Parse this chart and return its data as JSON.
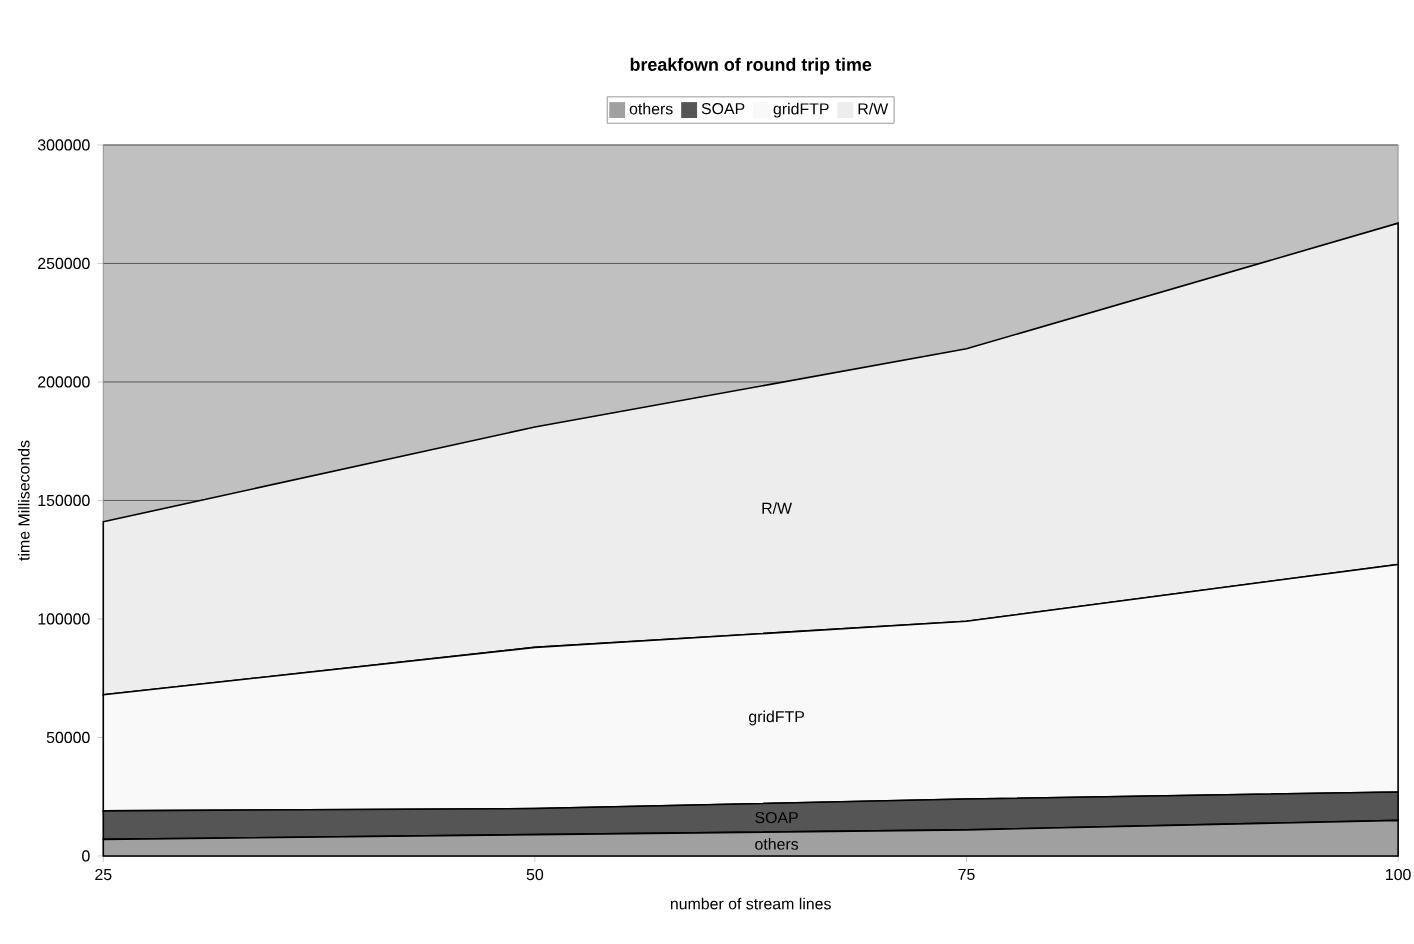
{
  "chart_data": {
    "type": "area",
    "title": "breakfown of round trip time",
    "xlabel": "number of stream lines",
    "ylabel": "time Milliseconds",
    "x": [
      25,
      50,
      75,
      100
    ],
    "stacked": true,
    "series": [
      {
        "name": "others",
        "color": "#a0a0a0",
        "values": [
          7000,
          9000,
          11000,
          15000
        ]
      },
      {
        "name": "SOAP",
        "color": "#555555",
        "values": [
          12000,
          11000,
          13000,
          12000
        ]
      },
      {
        "name": "gridFTP",
        "color": "#f9f9f9",
        "values": [
          49000,
          68000,
          75000,
          96000
        ]
      },
      {
        "name": "R/W",
        "color": "#ededed",
        "values": [
          73000,
          93000,
          115000,
          144000
        ]
      }
    ],
    "xlim": [
      25,
      100
    ],
    "xticks": [
      25,
      50,
      75,
      100
    ],
    "ylim": [
      0,
      300000
    ],
    "yticks": [
      0,
      50000,
      100000,
      150000,
      200000,
      250000,
      300000
    ],
    "grid": "y",
    "legend": "top"
  }
}
